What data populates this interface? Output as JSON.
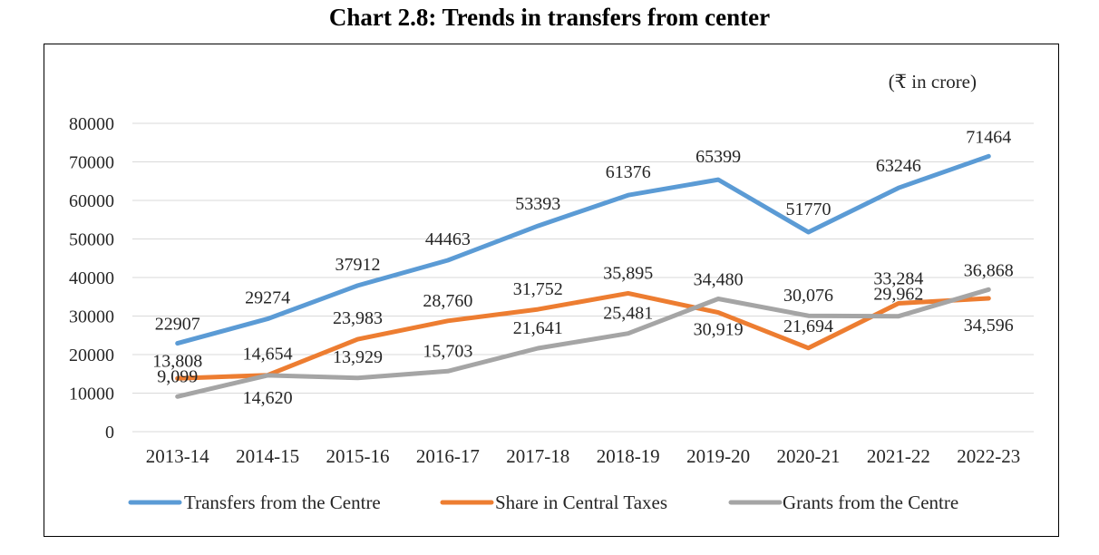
{
  "chart_data": {
    "type": "line",
    "title": "Chart 2.8:  Trends in transfers from center",
    "unit_note": "(₹ in crore)",
    "categories": [
      "2013-14",
      "2014-15",
      "2015-16",
      "2016-17",
      "2017-18",
      "2018-19",
      "2019-20",
      "2020-21",
      "2021-22",
      "2022-23"
    ],
    "ylim": [
      0,
      80000
    ],
    "yticks": [
      "0",
      "10000",
      "20000",
      "30000",
      "40000",
      "50000",
      "60000",
      "70000",
      "80000"
    ],
    "grid": true,
    "legend_position": "bottom",
    "series": [
      {
        "name": "Transfers from the Centre",
        "color": "#5B9BD5",
        "values": [
          22907,
          29274,
          37912,
          44463,
          53393,
          61376,
          65399,
          51770,
          63246,
          71464
        ],
        "labels": [
          "22907",
          "29274",
          "37912",
          "44463",
          "53393",
          "61376",
          "65399",
          "51770",
          "63246",
          "71464"
        ]
      },
      {
        "name": "Share in Central Taxes",
        "color": "#ED7D31",
        "values": [
          13808,
          14654,
          23983,
          28760,
          31752,
          35895,
          30919,
          21694,
          33284,
          34596
        ],
        "labels": [
          "13,808",
          "14,654",
          "23,983",
          "28,760",
          "31,752",
          "35,895",
          "30,919",
          "21,694",
          "33,284",
          "34,596"
        ]
      },
      {
        "name": "Grants from the Centre",
        "color": "#A5A5A5",
        "values": [
          9099,
          14620,
          13929,
          15703,
          21641,
          25481,
          34480,
          30076,
          29962,
          36868
        ],
        "labels": [
          "9,099",
          "14,620",
          "13,929",
          "15,703",
          "21,641",
          "25,481",
          "34,480",
          "30,076",
          "29,962",
          "36,868"
        ]
      }
    ]
  }
}
